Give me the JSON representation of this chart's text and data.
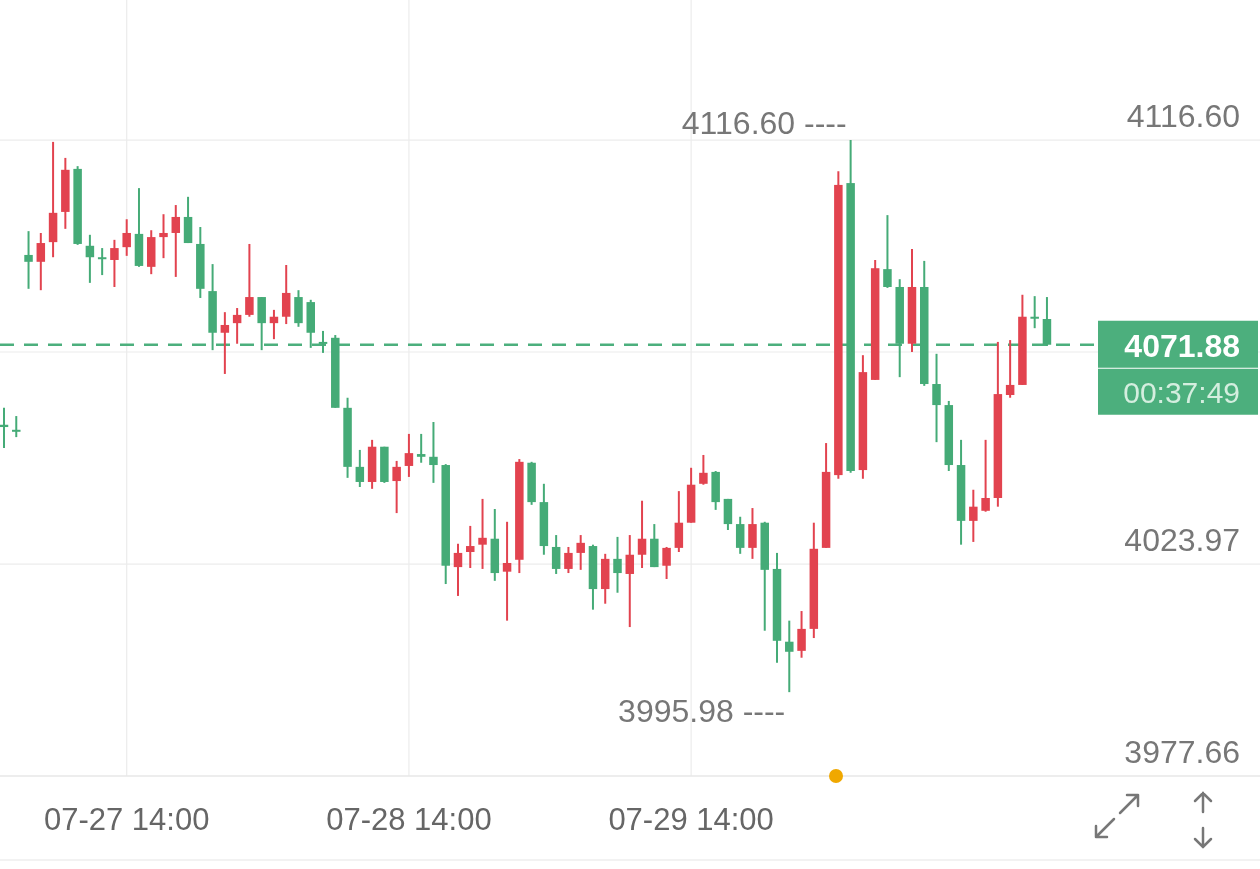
{
  "chart_data": {
    "type": "candlestick",
    "categories": [
      null,
      null,
      null,
      null,
      null,
      null,
      null,
      null,
      null,
      null,
      "07-27 14:00",
      null,
      null,
      null,
      null,
      null,
      null,
      null,
      null,
      null,
      null,
      null,
      null,
      null,
      null,
      null,
      null,
      null,
      null,
      null,
      null,
      null,
      null,
      "07-28 14:00",
      null,
      null,
      null,
      null,
      null,
      null,
      null,
      null,
      null,
      null,
      null,
      null,
      null,
      null,
      null,
      null,
      null,
      null,
      null,
      null,
      null,
      null,
      "07-29 14:00",
      null,
      null,
      null,
      null,
      null,
      null,
      null,
      null,
      null,
      null,
      null,
      null,
      null,
      null,
      null,
      null,
      null,
      null,
      null,
      null,
      null,
      null,
      null,
      null,
      null,
      null,
      null,
      null,
      null
    ],
    "ohlc": [
      [
        4054.4,
        4058.1,
        4049.3,
        4053.9
      ],
      [
        4053.3,
        4056.3,
        4051.7,
        4053.0
      ],
      [
        4091.5,
        4096.7,
        4084.1,
        4090.0
      ],
      [
        4090.0,
        4096.3,
        4083.8,
        4094.1
      ],
      [
        4094.3,
        4116.2,
        4091.0,
        4100.7
      ],
      [
        4100.9,
        4112.7,
        4097.2,
        4110.1
      ],
      [
        4110.3,
        4110.9,
        4093.7,
        4093.9
      ],
      [
        4093.5,
        4095.9,
        4085.4,
        4091.0
      ],
      [
        4091.0,
        4093.0,
        4087.1,
        4090.6
      ],
      [
        4090.4,
        4094.8,
        4084.5,
        4093.0
      ],
      [
        4093.2,
        4099.3,
        4091.3,
        4096.3
      ],
      [
        4096.1,
        4106.1,
        4088.9,
        4089.1
      ],
      [
        4088.9,
        4096.9,
        4087.3,
        4095.4
      ],
      [
        4095.4,
        4100.4,
        4090.8,
        4096.3
      ],
      [
        4096.3,
        4102.4,
        4086.7,
        4099.8
      ],
      [
        4099.8,
        4104.2,
        4094.1,
        4094.1
      ],
      [
        4093.9,
        4097.6,
        4082.1,
        4084.1
      ],
      [
        4083.6,
        4089.5,
        4070.7,
        4074.5
      ],
      [
        4074.5,
        4079.0,
        4065.5,
        4076.2
      ],
      [
        4076.6,
        4079.9,
        4072.1,
        4078.4
      ],
      [
        4078.4,
        4093.9,
        4078.0,
        4082.3
      ],
      [
        4082.3,
        4082.3,
        4070.7,
        4076.6
      ],
      [
        4076.6,
        4079.5,
        4073.1,
        4078.0
      ],
      [
        4078.0,
        4089.3,
        4076.4,
        4083.2
      ],
      [
        4082.3,
        4083.8,
        4075.8,
        4076.6
      ],
      [
        4081.2,
        4081.7,
        4071.2,
        4074.5
      ],
      [
        4072.5,
        4074.9,
        4070.1,
        4072.1
      ],
      [
        4073.4,
        4074.0,
        4058.1,
        4058.1
      ],
      [
        4058.1,
        4060.3,
        4042.8,
        4045.2
      ],
      [
        4045.2,
        4048.9,
        4040.8,
        4041.9
      ],
      [
        4041.9,
        4051.1,
        4040.4,
        4049.6
      ],
      [
        4049.6,
        4049.6,
        4041.7,
        4041.9
      ],
      [
        4042.1,
        4046.5,
        4035.1,
        4045.2
      ],
      [
        4045.4,
        4052.4,
        4043.0,
        4048.2
      ],
      [
        4048.0,
        4052.4,
        4046.1,
        4047.4
      ],
      [
        4047.4,
        4055.0,
        4041.7,
        4045.6
      ],
      [
        4045.6,
        4045.8,
        4019.6,
        4023.6
      ],
      [
        4023.3,
        4028.4,
        4017.0,
        4026.4
      ],
      [
        4026.6,
        4032.3,
        4023.1,
        4027.9
      ],
      [
        4028.2,
        4038.2,
        4022.9,
        4029.7
      ],
      [
        4029.5,
        4036.0,
        4020.3,
        4022.0
      ],
      [
        4022.3,
        4033.2,
        4011.6,
        4024.2
      ],
      [
        4024.9,
        4046.9,
        4022.0,
        4046.3
      ],
      [
        4046.1,
        4046.3,
        4036.9,
        4037.5
      ],
      [
        4037.5,
        4041.5,
        4026.0,
        4027.9
      ],
      [
        4027.7,
        4030.3,
        4021.8,
        4022.9
      ],
      [
        4022.9,
        4027.7,
        4022.0,
        4026.4
      ],
      [
        4026.4,
        4030.3,
        4022.7,
        4028.6
      ],
      [
        4027.9,
        4028.2,
        4014.0,
        4018.5
      ],
      [
        4018.5,
        4026.2,
        4015.3,
        4025.1
      ],
      [
        4025.1,
        4029.9,
        4017.7,
        4022.0
      ],
      [
        4021.8,
        4030.3,
        4010.2,
        4026.0
      ],
      [
        4026.0,
        4037.8,
        4023.1,
        4029.5
      ],
      [
        4029.5,
        4032.7,
        4023.3,
        4023.3
      ],
      [
        4023.6,
        4027.7,
        4020.7,
        4027.5
      ],
      [
        4027.5,
        4039.9,
        4026.6,
        4033.0
      ],
      [
        4033.0,
        4045.0,
        4033.0,
        4041.3
      ],
      [
        4041.5,
        4047.8,
        4041.3,
        4043.9
      ],
      [
        4044.1,
        4044.3,
        4035.8,
        4037.5
      ],
      [
        4038.2,
        4038.2,
        4031.4,
        4032.7
      ],
      [
        4032.7,
        4034.3,
        4026.2,
        4027.5
      ],
      [
        4027.5,
        4036.2,
        4025.1,
        4032.7
      ],
      [
        4033.0,
        4033.2,
        4009.4,
        4022.7
      ],
      [
        4022.9,
        4026.4,
        4002.4,
        4007.2
      ],
      [
        4007.0,
        4011.6,
        3995.98,
        4004.8
      ],
      [
        4005.0,
        4013.7,
        4003.5,
        4009.8
      ],
      [
        4009.8,
        4033.0,
        4007.8,
        4027.3
      ],
      [
        4027.5,
        4050.4,
        4027.5,
        4044.1
      ],
      [
        4043.4,
        4109.8,
        4042.6,
        4106.8
      ],
      [
        4107.2,
        4116.6,
        4043.9,
        4044.3
      ],
      [
        4044.5,
        4069.6,
        4042.6,
        4065.9
      ],
      [
        4064.2,
        4090.4,
        4064.2,
        4088.6
      ],
      [
        4088.4,
        4100.2,
        4084.3,
        4084.5
      ],
      [
        4084.5,
        4086.2,
        4064.8,
        4072.1
      ],
      [
        4072.1,
        4092.8,
        4070.3,
        4084.5
      ],
      [
        4084.5,
        4090.2,
        4062.9,
        4063.3
      ],
      [
        4063.3,
        4069.9,
        4050.6,
        4058.7
      ],
      [
        4058.7,
        4059.6,
        4044.3,
        4045.6
      ],
      [
        4045.6,
        4051.1,
        4028.2,
        4033.4
      ],
      [
        4033.4,
        4040.2,
        4028.8,
        4036.5
      ],
      [
        4035.6,
        4051.1,
        4035.4,
        4038.4
      ],
      [
        4038.4,
        4072.5,
        4036.5,
        4061.1
      ],
      [
        4060.9,
        4072.9,
        4060.3,
        4063.1
      ],
      [
        4063.1,
        4082.8,
        4063.1,
        4078.0
      ],
      [
        4078.0,
        4082.5,
        4075.5,
        4077.7
      ],
      [
        4077.5,
        4082.3,
        4071.6,
        4071.88
      ]
    ],
    "colors": [
      "#45ab77",
      "#45ab77",
      "#45ab77",
      "#e2434f",
      "#e2434f",
      "#e2434f",
      "#45ab77",
      "#45ab77",
      "#45ab77",
      "#e2434f",
      "#e2434f",
      "#45ab77",
      "#e2434f",
      "#e2434f",
      "#e2434f",
      "#45ab77",
      "#45ab77",
      "#45ab77",
      "#e2434f",
      "#e2434f",
      "#e2434f",
      "#45ab77",
      "#e2434f",
      "#e2434f",
      "#45ab77",
      "#45ab77",
      "#45ab77",
      "#45ab77",
      "#45ab77",
      "#45ab77",
      "#e2434f",
      "#45ab77",
      "#e2434f",
      "#e2434f",
      "#45ab77",
      "#45ab77",
      "#45ab77",
      "#e2434f",
      "#e2434f",
      "#e2434f",
      "#45ab77",
      "#e2434f",
      "#e2434f",
      "#45ab77",
      "#45ab77",
      "#45ab77",
      "#e2434f",
      "#e2434f",
      "#45ab77",
      "#e2434f",
      "#45ab77",
      "#e2434f",
      "#e2434f",
      "#45ab77",
      "#e2434f",
      "#e2434f",
      "#e2434f",
      "#e2434f",
      "#45ab77",
      "#45ab77",
      "#45ab77",
      "#e2434f",
      "#45ab77",
      "#45ab77",
      "#45ab77",
      "#e2434f",
      "#e2434f",
      "#e2434f",
      "#e2434f",
      "#45ab77",
      "#e2434f",
      "#e2434f",
      "#45ab77",
      "#45ab77",
      "#e2434f",
      "#45ab77",
      "#45ab77",
      "#45ab77",
      "#45ab77",
      "#e2434f",
      "#e2434f",
      "#e2434f",
      "#e2434f",
      "#e2434f",
      "#45ab77",
      "#45ab77"
    ],
    "ylim": [
      3977.66,
      4147.2
    ],
    "yticks": [
      {
        "value": 4116.6,
        "label": "4116.60"
      },
      {
        "value": 4070.29,
        "label": null
      },
      4023.97,
      3977.66
    ],
    "grid": true,
    "ref_lines": [
      {
        "axis": "y",
        "value": 4071.88,
        "label": "4071.88",
        "color": "#4caf7d",
        "line_style": "dashed"
      }
    ],
    "annotations": [
      "4116.60 ----",
      "3995.98 ----",
      "00:37:49"
    ]
  }
}
